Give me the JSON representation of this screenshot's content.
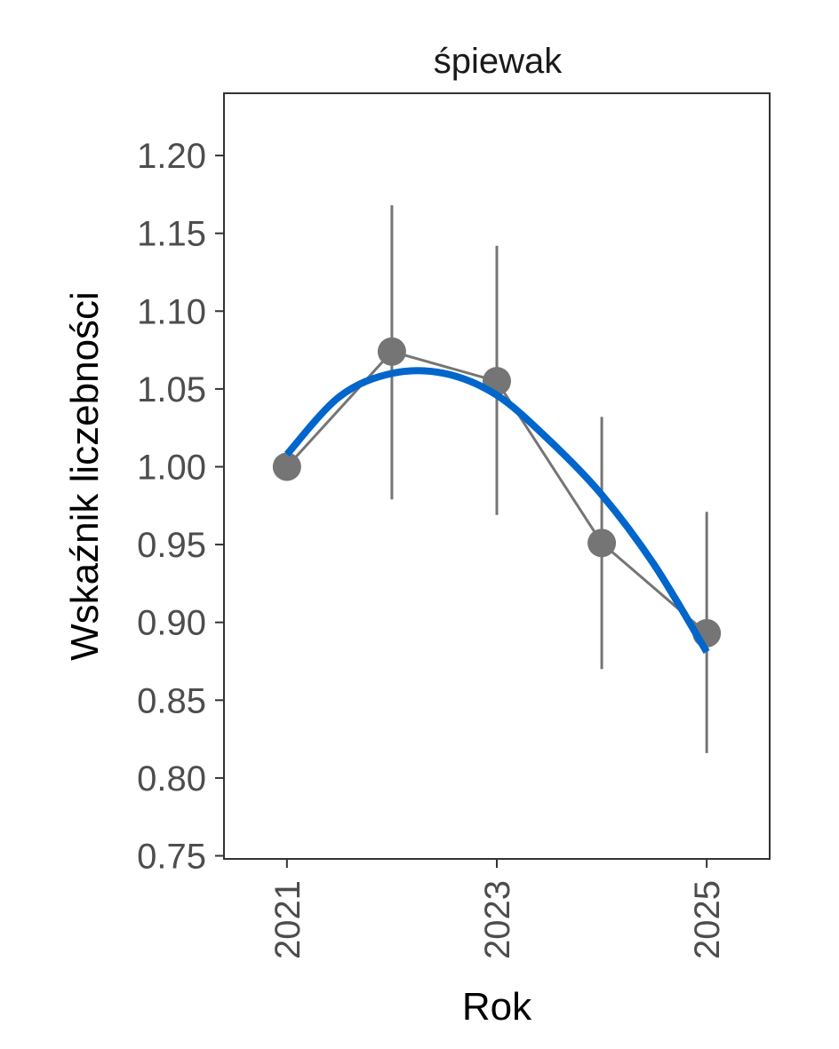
{
  "chart_data": {
    "type": "line",
    "title": "śpiewak",
    "xlabel": "Rok",
    "ylabel": "Wskaźnik liczebności",
    "x_ticks": [
      "2021",
      "2023",
      "2025"
    ],
    "y_ticks": [
      "0.75",
      "0.80",
      "0.85",
      "0.90",
      "0.95",
      "1.00",
      "1.05",
      "1.10",
      "1.15",
      "1.20"
    ],
    "xlim": [
      2020.4,
      2025.6
    ],
    "ylim": [
      0.748,
      1.24
    ],
    "grid": false,
    "series": [
      {
        "x": [
          2021,
          2022,
          2023,
          2024,
          2025
        ],
        "y": [
          1.0,
          1.074,
          1.055,
          0.951,
          0.893
        ],
        "lower": [
          1.0,
          0.979,
          0.969,
          0.87,
          0.816
        ],
        "upper": [
          1.0,
          1.168,
          1.142,
          1.032,
          0.971
        ]
      }
    ],
    "trend": {
      "x": [
        2021,
        2021.5,
        2022,
        2022.5,
        2023,
        2023.5,
        2024,
        2024.5,
        2025
      ],
      "y": [
        1.008,
        1.045,
        1.06,
        1.06,
        1.046,
        1.017,
        0.982,
        0.937,
        0.881
      ]
    },
    "colors": {
      "points": "#757575",
      "connect_line": "#757575",
      "error_bars": "#757575",
      "trend": "#0066cc",
      "panel_border": "#333333"
    }
  }
}
